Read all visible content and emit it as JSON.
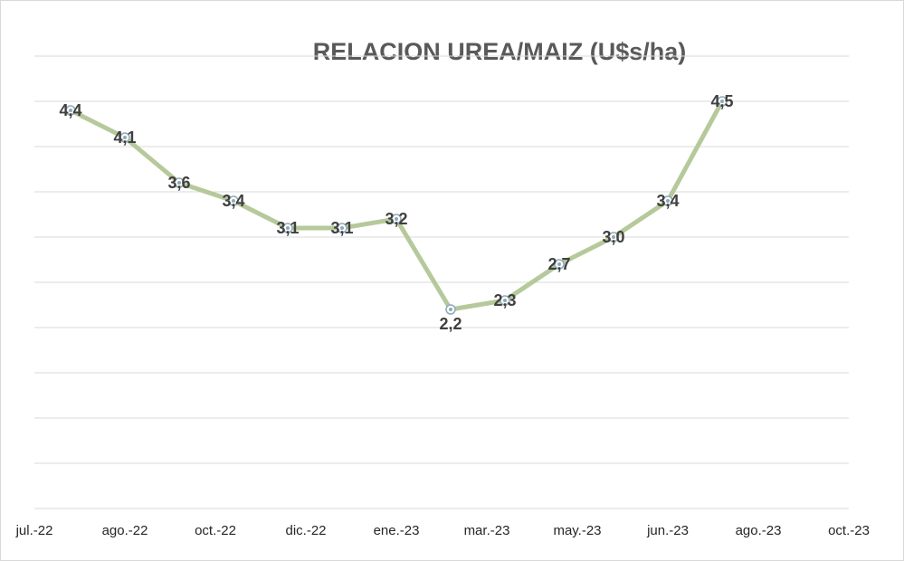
{
  "chart_data": {
    "type": "line",
    "title": "RELACION UREA/MAIZ (U$s/ha)",
    "xlabel": "",
    "ylabel": "",
    "x_tick_labels": [
      "jul.-22",
      "ago.-22",
      "oct.-22",
      "dic.-22",
      "ene.-23",
      "mar.-23",
      "may.-23",
      "jun.-23",
      "ago.-23",
      "oct.-23"
    ],
    "ylim": [
      0,
      5
    ],
    "y_gridlines": 10,
    "grid": true,
    "legend": "none",
    "series": [
      {
        "color": "#b6c99b",
        "points": [
          {
            "x": 0.4,
            "y": 4.4,
            "label": "4,4"
          },
          {
            "x": 1.0,
            "y": 4.1,
            "label": "4,1"
          },
          {
            "x": 1.6,
            "y": 3.6,
            "label": "3,6"
          },
          {
            "x": 2.2,
            "y": 3.4,
            "label": "3,4"
          },
          {
            "x": 2.8,
            "y": 3.1,
            "label": "3,1"
          },
          {
            "x": 3.4,
            "y": 3.1,
            "label": "3,1"
          },
          {
            "x": 4.0,
            "y": 3.2,
            "label": "3,2"
          },
          {
            "x": 4.6,
            "y": 2.2,
            "label": "2,2"
          },
          {
            "x": 5.2,
            "y": 2.3,
            "label": "2,3"
          },
          {
            "x": 5.8,
            "y": 2.7,
            "label": "2,7"
          },
          {
            "x": 6.4,
            "y": 3.0,
            "label": "3,0"
          },
          {
            "x": 7.0,
            "y": 3.4,
            "label": "3,4"
          },
          {
            "x": 7.6,
            "y": 4.5,
            "label": "4,5"
          }
        ]
      }
    ],
    "marker_color": "#8eaab8"
  }
}
